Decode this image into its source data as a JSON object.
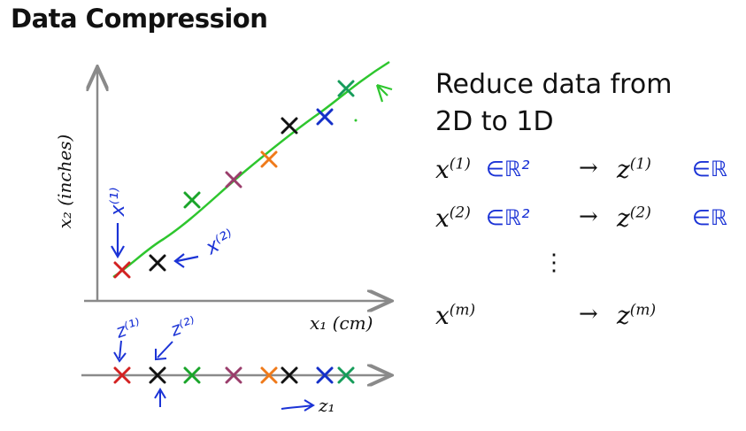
{
  "title": "Data Compression",
  "heading": {
    "line1": "Reduce data from",
    "line2": "2D to 1D"
  },
  "axes": {
    "y_label": "x₂ (inches)",
    "x_label": "x₁ (cm)",
    "z_label": "z₁"
  },
  "annotations": {
    "x1_point": "x⁽¹⁾",
    "x2_point": "x⁽²⁾",
    "z1_point": "z⁽¹⁾",
    "z2_point": "z⁽²⁾"
  },
  "mapping": [
    {
      "lhs": "x",
      "lhs_sup": "(1)",
      "lhs_anno": "∈ℝ²",
      "arrow": "→",
      "rhs": "z",
      "rhs_sup": "(1)",
      "rhs_anno": "∈ℝ"
    },
    {
      "lhs": "x",
      "lhs_sup": "(2)",
      "lhs_anno": "∈ℝ²",
      "arrow": "→",
      "rhs": "z",
      "rhs_sup": "(2)",
      "rhs_anno": "∈ℝ"
    },
    {
      "lhs": "x",
      "lhs_sup": "(m)",
      "lhs_anno": "",
      "arrow": "→",
      "rhs": "z",
      "rhs_sup": "(m)",
      "rhs_anno": ""
    }
  ],
  "vdots": "⋮",
  "colors": {
    "line": "#2ec62e",
    "axis": "#8a8a8a",
    "annotation": "#1b33d6",
    "points": [
      "#d32222",
      "#111111",
      "#1aa52a",
      "#9a3d6b",
      "#ef7a1a",
      "#111111",
      "#1530c8",
      "#169c5a"
    ]
  }
}
